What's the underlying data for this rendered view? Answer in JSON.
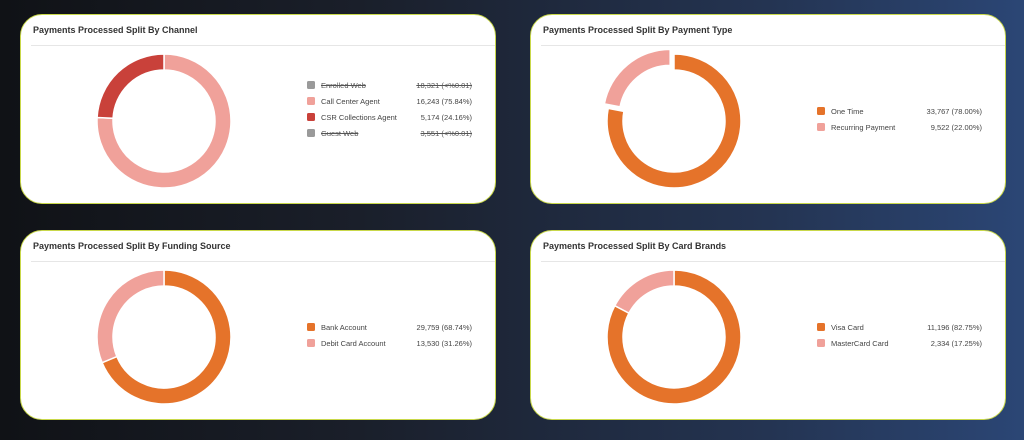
{
  "colors": {
    "orange": "#e5732a",
    "pink": "#f0a19a",
    "red": "#c9413a",
    "gray": "#9a9a9a"
  },
  "chart_data": [
    {
      "type": "pie",
      "title": "Payments Processed Split By Channel",
      "donut": true,
      "slices": [
        {
          "label": "Enrolled Web",
          "value": 18321,
          "display": "18,321 (<%0.01)",
          "color": "#9a9a9a",
          "hidden": true
        },
        {
          "label": "Call Center Agent",
          "value": 16243,
          "display": "16,243 (75.84%)",
          "color": "#f0a19a",
          "hidden": false
        },
        {
          "label": "CSR Collections Agent",
          "value": 5174,
          "display": "5,174 (24.16%)",
          "color": "#c9413a",
          "hidden": false
        },
        {
          "label": "Guest Web",
          "value": 3551,
          "display": "3,551 (<%0.01)",
          "color": "#9a9a9a",
          "hidden": true
        }
      ]
    },
    {
      "type": "pie",
      "title": "Payments Processed Split By Payment Type",
      "donut": true,
      "exploded": "Recurring Payment",
      "slices": [
        {
          "label": "One Time",
          "value": 33767,
          "display": "33,767 (78.00%)",
          "color": "#e5732a",
          "hidden": false
        },
        {
          "label": "Recurring Payment",
          "value": 9522,
          "display": "9,522 (22.00%)",
          "color": "#f0a19a",
          "hidden": false
        }
      ]
    },
    {
      "type": "pie",
      "title": "Payments Processed Split By Funding Source",
      "donut": true,
      "slices": [
        {
          "label": "Bank Account",
          "value": 29759,
          "display": "29,759 (68.74%)",
          "color": "#e5732a",
          "hidden": false
        },
        {
          "label": "Debit Card Account",
          "value": 13530,
          "display": "13,530 (31.26%)",
          "color": "#f0a19a",
          "hidden": false
        }
      ]
    },
    {
      "type": "pie",
      "title": "Payments Processed Split By Card Brands",
      "donut": true,
      "slices": [
        {
          "label": "Visa Card",
          "value": 11196,
          "display": "11,196 (82.75%)",
          "color": "#e5732a",
          "hidden": false
        },
        {
          "label": "MasterCard Card",
          "value": 2334,
          "display": "2,334 (17.25%)",
          "color": "#f0a19a",
          "hidden": false
        }
      ]
    }
  ]
}
